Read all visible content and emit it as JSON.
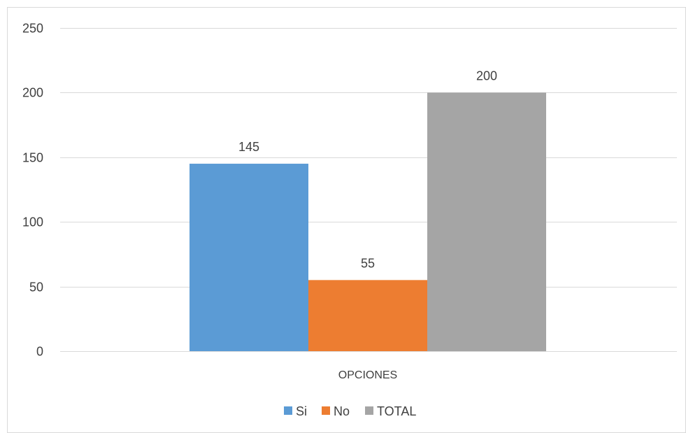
{
  "chart_data": {
    "type": "bar",
    "categories": [
      "OPCIONES"
    ],
    "series": [
      {
        "name": "Si",
        "values": [
          145
        ],
        "color": "#5B9BD5"
      },
      {
        "name": "No",
        "values": [
          55
        ],
        "color": "#ED7D31"
      },
      {
        "name": "TOTAL",
        "values": [
          200
        ],
        "color": "#A5A5A5"
      }
    ],
    "ylim": [
      0,
      250
    ],
    "yticks": [
      0,
      50,
      100,
      150,
      200,
      250
    ],
    "grid": true,
    "legend_position": "bottom",
    "gridline_color": "#D9D9D9",
    "text_color": "#404040"
  }
}
